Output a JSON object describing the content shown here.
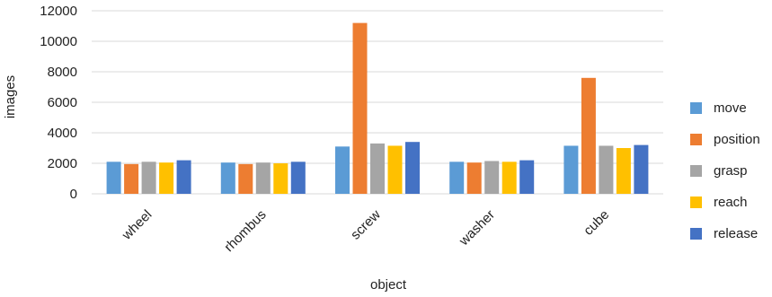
{
  "chart_data": {
    "type": "bar",
    "xlabel": "object",
    "ylabel": "images",
    "ylim": [
      0,
      12000
    ],
    "yticks": [
      0,
      2000,
      4000,
      6000,
      8000,
      10000,
      12000
    ],
    "grid": true,
    "legend_position": "right",
    "categories": [
      "wheel",
      "rhombus",
      "screw",
      "washer",
      "cube"
    ],
    "series": [
      {
        "name": "move",
        "color": "#5b9bd5",
        "values": [
          2100,
          2050,
          3100,
          2100,
          3150
        ]
      },
      {
        "name": "position",
        "color": "#ed7d31",
        "values": [
          1950,
          1950,
          11200,
          2050,
          7600
        ]
      },
      {
        "name": "grasp",
        "color": "#a5a5a5",
        "values": [
          2100,
          2050,
          3300,
          2150,
          3150
        ]
      },
      {
        "name": "reach",
        "color": "#ffc000",
        "values": [
          2050,
          2000,
          3150,
          2100,
          3000
        ]
      },
      {
        "name": "release",
        "color": "#4472c4",
        "values": [
          2200,
          2100,
          3400,
          2200,
          3200
        ]
      }
    ]
  }
}
